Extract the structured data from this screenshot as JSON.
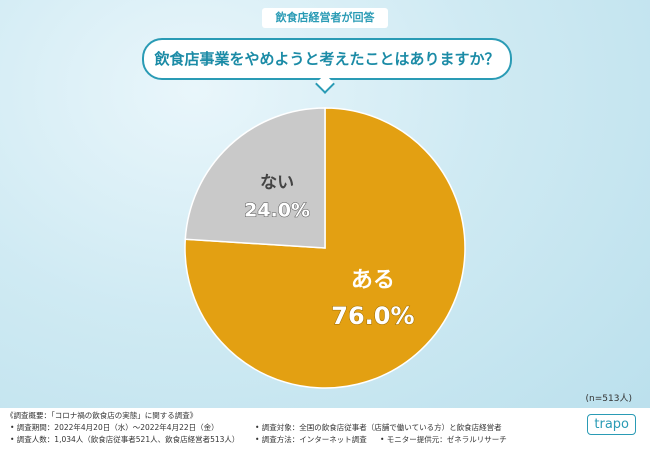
{
  "header": {
    "tag": "飲食店経営者が回答",
    "question": "飲食店事業をやめようと考えたことはありますか？"
  },
  "chart_data": {
    "type": "pie",
    "categories": [
      "ある",
      "ない"
    ],
    "values": [
      76,
      24
    ],
    "value_labels": [
      "76.0%",
      "24.0%"
    ],
    "colors": [
      "#e3a012",
      "#c9c9c9"
    ],
    "sample_note": "(n=513人)"
  },
  "footer": {
    "heading": "《調査概要：「コロナ禍の飲食店の実態」に関する調査》",
    "items": [
      "• 調査期間：2022年4月20日（水）～2022年4月22日（金）",
      "• 調査対象：全国の飲食店従事者（店舗で働いている方）と飲食店経営者",
      "• 調査人数：1,034人（飲食店従事者521人、飲食店経営者513人）",
      "• 調査方法：インターネット調査",
      "• モニター提供元：ゼネラルリサーチ"
    ],
    "logo": "trapo"
  }
}
